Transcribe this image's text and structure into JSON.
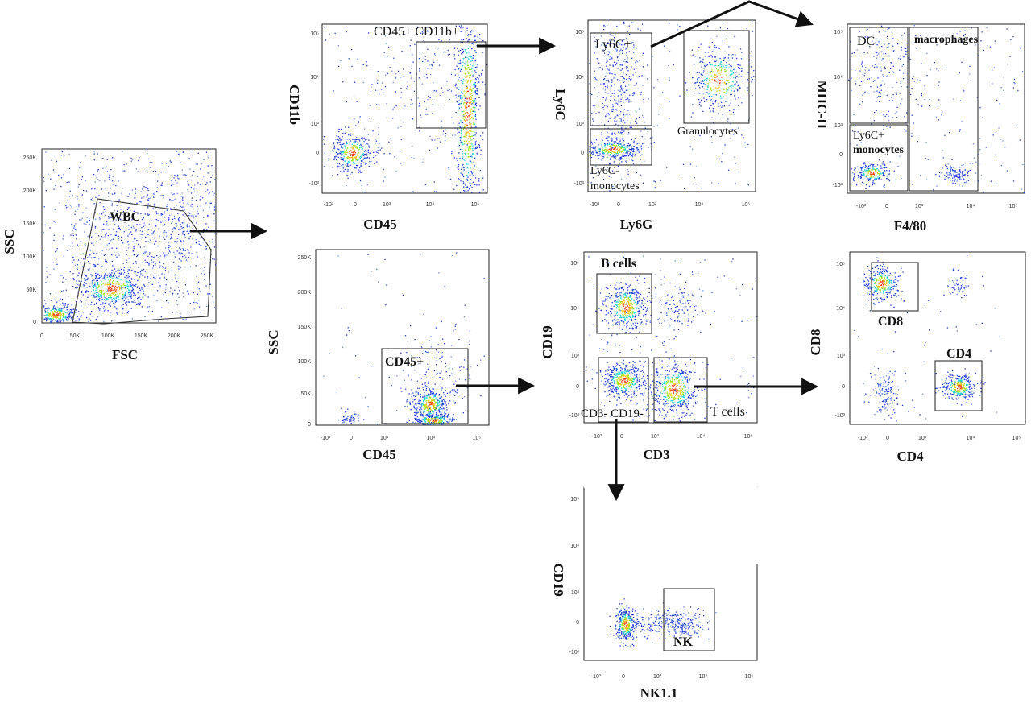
{
  "colors": {
    "dots": "#1f3fd6",
    "dots_light": "#6a84f0",
    "density_mid": "#1ecfd0",
    "density_high": "#9ee21b",
    "density_peak": "#f2c21a",
    "density_top": "#e8481c",
    "frame": "#222222",
    "arrow": "#111111"
  },
  "panels": [
    {
      "id": "fsc-ssc",
      "xlabel": "FSC",
      "ylabel": "SSC",
      "xticks": [
        "0",
        "50K",
        "100K",
        "150K",
        "200K",
        "250K"
      ],
      "yticks": [
        "0",
        "50K",
        "100K",
        "150K",
        "200K",
        "250K"
      ],
      "gates": [
        {
          "label": "WBC"
        }
      ]
    },
    {
      "id": "cd45-cd11b",
      "xlabel": "CD45",
      "ylabel": "CD11b",
      "xticks": [
        "-10³",
        "0",
        "10³",
        "10⁴",
        "10⁵"
      ],
      "yticks": [
        "-10³",
        "0",
        "10³",
        "10⁴",
        "10⁵"
      ],
      "gates": [
        {
          "label": "CD45+ CD11b+"
        }
      ]
    },
    {
      "id": "ly6g-ly6c",
      "xlabel": "Ly6G",
      "ylabel": "Ly6C",
      "xticks": [
        "-10³",
        "0",
        "10³",
        "10⁴",
        "10⁵"
      ],
      "yticks": [
        "-10³",
        "0",
        "10³",
        "10⁴",
        "10⁵"
      ],
      "gates": [
        {
          "label": "Ly6C+"
        },
        {
          "label": "Granulocytes"
        },
        {
          "label": "Ly6C-"
        },
        {
          "label": "monocytes"
        }
      ]
    },
    {
      "id": "f480-mhcii",
      "xlabel": "F4/80",
      "ylabel": "MHC-II",
      "xticks": [
        "-10³",
        "0",
        "10³",
        "10⁴",
        "10⁵"
      ],
      "yticks": [
        "-10³",
        "0",
        "10³",
        "10⁴",
        "10⁵"
      ],
      "gates": [
        {
          "label": "DC"
        },
        {
          "label": "macrophages"
        },
        {
          "label": "Ly6C+"
        },
        {
          "label": "monocytes"
        }
      ]
    },
    {
      "id": "cd45-ssc",
      "xlabel": "CD45",
      "ylabel": "SSC",
      "xticks": [
        "-10³",
        "0",
        "10³",
        "10⁴",
        "10⁵"
      ],
      "yticks": [
        "0",
        "50K",
        "100K",
        "150K",
        "200K",
        "250K"
      ],
      "gates": [
        {
          "label": "CD45+"
        }
      ]
    },
    {
      "id": "cd3-cd19",
      "xlabel": "CD3",
      "ylabel": "CD19",
      "xticks": [
        "-10³",
        "0",
        "10³",
        "10⁴",
        "10⁵"
      ],
      "yticks": [
        "-10³",
        "0",
        "10³",
        "10⁴",
        "10⁵"
      ],
      "gates": [
        {
          "label": "B cells"
        },
        {
          "label": "CD3- CD19-"
        },
        {
          "label": "T cells"
        }
      ]
    },
    {
      "id": "cd4-cd8",
      "xlabel": "CD4",
      "ylabel": "CD8",
      "xticks": [
        "-10³",
        "0",
        "10³",
        "10⁴",
        "10⁵"
      ],
      "yticks": [
        "-10³",
        "0",
        "10³",
        "10⁴",
        "10⁵"
      ],
      "gates": [
        {
          "label": "CD8"
        },
        {
          "label": "CD4"
        }
      ]
    },
    {
      "id": "nk11-cd19",
      "xlabel": "NK1.1",
      "ylabel": "CD19",
      "xticks": [
        "-10³",
        "0",
        "10³",
        "10⁴",
        "10⁵"
      ],
      "yticks": [
        "-10³",
        "0",
        "10³",
        "10⁴",
        "10⁵"
      ],
      "gates": [
        {
          "label": "NK"
        }
      ]
    }
  ]
}
